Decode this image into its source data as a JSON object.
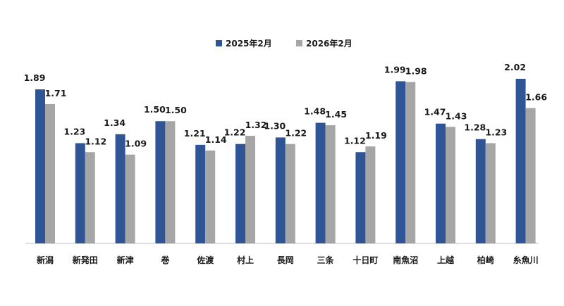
{
  "chart_data": {
    "type": "bar",
    "categories": [
      "新潟",
      "新発田",
      "新津",
      "巻",
      "佐渡",
      "村上",
      "長岡",
      "三条",
      "十日町",
      "南魚沼",
      "上越",
      "柏崎",
      "糸魚川"
    ],
    "series": [
      {
        "name": "2025年2月",
        "color": "#2f5597",
        "values": [
          1.89,
          1.23,
          1.34,
          1.5,
          1.21,
          1.22,
          1.3,
          1.48,
          1.12,
          1.99,
          1.47,
          1.28,
          2.02
        ],
        "labels": [
          "1.89",
          "1.23",
          "1.34",
          "1.50",
          "1.21",
          "1.22",
          "1.30",
          "1.48",
          "1.12",
          "1.99",
          "1.47",
          "1.28",
          "2.02"
        ]
      },
      {
        "name": "2026年2月",
        "color": "#a6a6a6",
        "values": [
          1.71,
          1.12,
          1.09,
          1.5,
          1.14,
          1.32,
          1.22,
          1.45,
          1.19,
          1.98,
          1.43,
          1.23,
          1.66
        ],
        "labels": [
          "1.71",
          "1.12",
          "1.09",
          "1.50",
          "1.14",
          "1.32",
          "1.22",
          "1.45",
          "1.19",
          "1.98",
          "1.43",
          "1.23",
          "1.66"
        ]
      }
    ],
    "ylim": [
      0,
      2.02
    ],
    "grid": false,
    "legend_position": "top-center"
  }
}
